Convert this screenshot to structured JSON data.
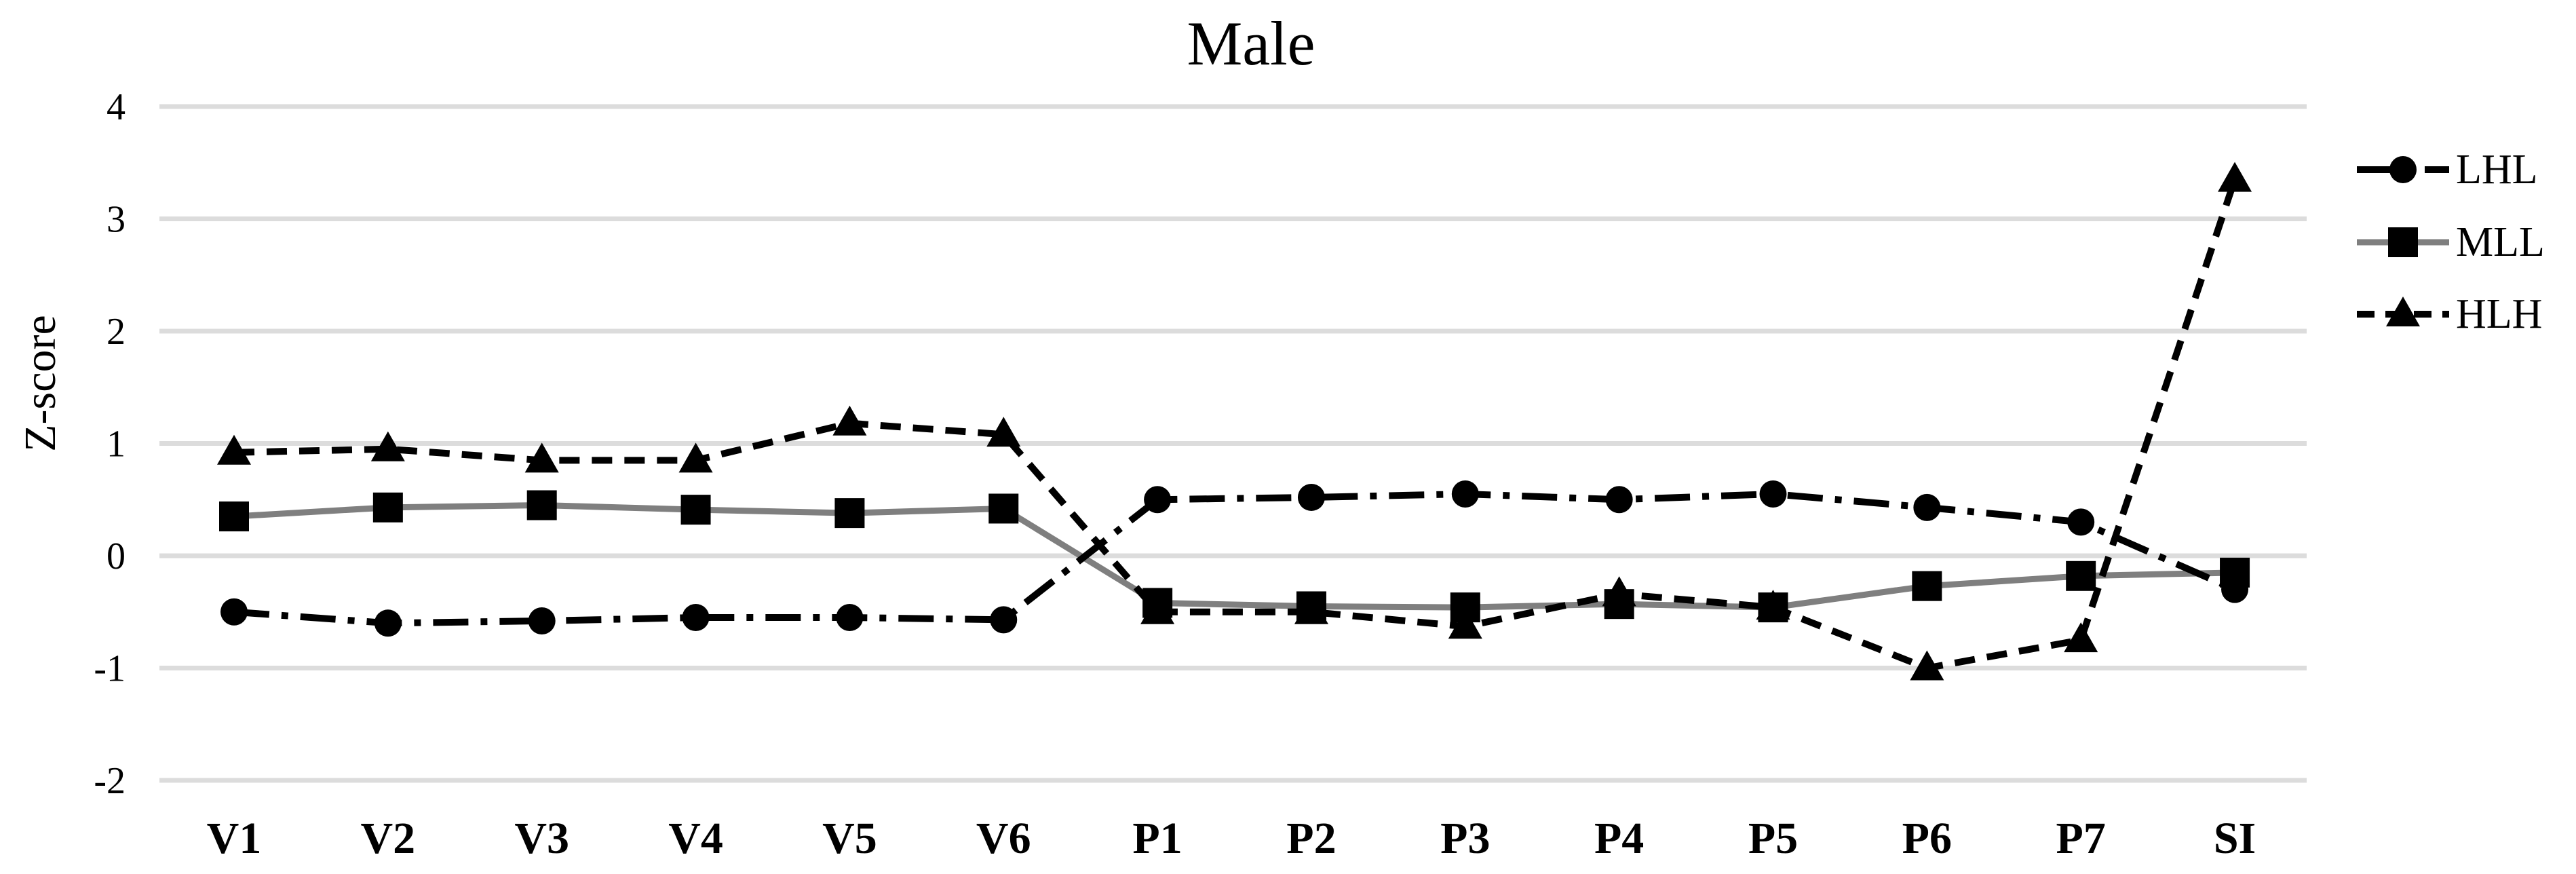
{
  "chart_data": {
    "type": "line",
    "title": "Male",
    "xlabel": "",
    "ylabel": "Z-score",
    "ylim": [
      -2,
      4
    ],
    "y_ticks": [
      4,
      3,
      2,
      1,
      0,
      -1,
      -2
    ],
    "grid": true,
    "legend_position": "right",
    "categories": [
      "V1",
      "V2",
      "V3",
      "V4",
      "V5",
      "V6",
      "P1",
      "P2",
      "P3",
      "P4",
      "P5",
      "P6",
      "P7",
      "SI"
    ],
    "series": [
      {
        "name": "LHL",
        "marker": "circle",
        "line_style": "dash-dot",
        "color": "#000000",
        "values": [
          -0.5,
          -0.6,
          -0.58,
          -0.55,
          -0.55,
          -0.57,
          0.5,
          0.52,
          0.55,
          0.5,
          0.55,
          0.43,
          0.3,
          -0.3
        ]
      },
      {
        "name": "MLL",
        "marker": "square",
        "line_style": "solid",
        "color": "#7f7f7f",
        "marker_color": "#000000",
        "values": [
          0.35,
          0.43,
          0.45,
          0.41,
          0.38,
          0.42,
          -0.42,
          -0.45,
          -0.46,
          -0.43,
          -0.46,
          -0.27,
          -0.18,
          -0.15
        ]
      },
      {
        "name": "HLH",
        "marker": "triangle",
        "line_style": "dashed",
        "color": "#000000",
        "values": [
          0.92,
          0.95,
          0.85,
          0.85,
          1.18,
          1.08,
          -0.5,
          -0.5,
          -0.63,
          -0.34,
          -0.46,
          -1.0,
          -0.75,
          3.35
        ]
      }
    ],
    "colors": {
      "grid": "#dcdcdc",
      "text": "#000000",
      "marker": "#000000"
    }
  }
}
